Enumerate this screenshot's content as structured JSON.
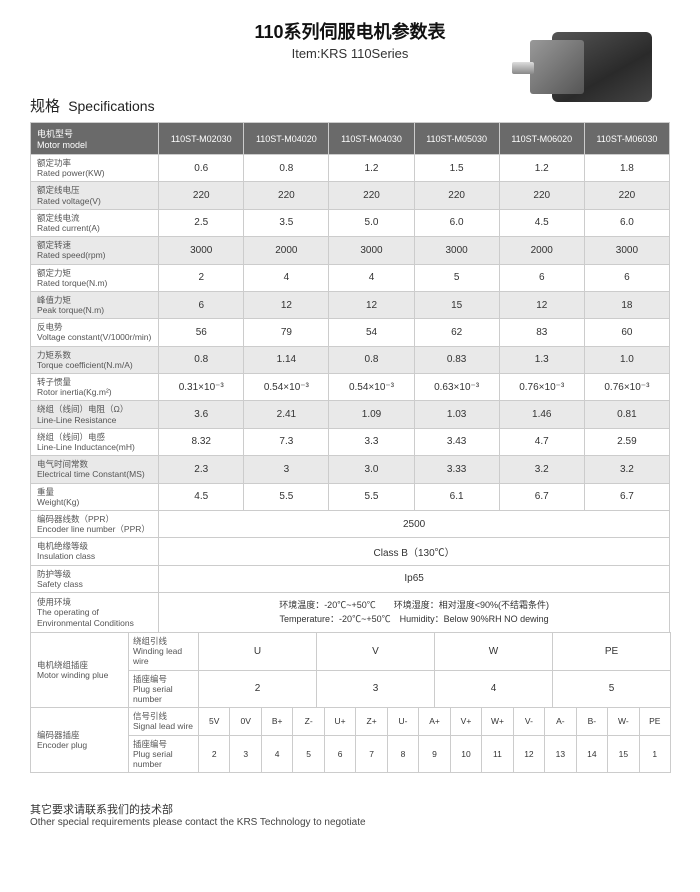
{
  "header": {
    "title_cn": "110系列伺服电机参数表",
    "title_en": "Item:KRS 110Series"
  },
  "section_title_cn": "规格",
  "section_title_en": "Specifications",
  "motor_model_label_cn": "电机型号",
  "motor_model_label_en": "Motor model",
  "models": [
    "110ST-M02030",
    "110ST-M04020",
    "110ST-M04030",
    "110ST-M05030",
    "110ST-M06020",
    "110ST-M06030"
  ],
  "rows": [
    {
      "cn": "额定功率",
      "en": "Rated power(KW)",
      "v": [
        "0.6",
        "0.8",
        "1.2",
        "1.5",
        "1.2",
        "1.8"
      ],
      "alt": false
    },
    {
      "cn": "额定线电压",
      "en": "Rated voltage(V)",
      "v": [
        "220",
        "220",
        "220",
        "220",
        "220",
        "220"
      ],
      "alt": true
    },
    {
      "cn": "额定线电流",
      "en": "Rated current(A)",
      "v": [
        "2.5",
        "3.5",
        "5.0",
        "6.0",
        "4.5",
        "6.0"
      ],
      "alt": false
    },
    {
      "cn": "额定转速",
      "en": "Rated speed(rpm)",
      "v": [
        "3000",
        "2000",
        "3000",
        "3000",
        "2000",
        "3000"
      ],
      "alt": true
    },
    {
      "cn": "额定力矩",
      "en": "Rated torque(N.m)",
      "v": [
        "2",
        "4",
        "4",
        "5",
        "6",
        "6"
      ],
      "alt": false
    },
    {
      "cn": "峰值力矩",
      "en": "Peak torque(N.m)",
      "v": [
        "6",
        "12",
        "12",
        "15",
        "12",
        "18"
      ],
      "alt": true
    },
    {
      "cn": "反电势",
      "en": "Voltage constant(V/1000r/min)",
      "v": [
        "56",
        "79",
        "54",
        "62",
        "83",
        "60"
      ],
      "alt": false
    },
    {
      "cn": "力矩系数",
      "en": "Torque coefficient(N.m/A)",
      "v": [
        "0.8",
        "1.14",
        "0.8",
        "0.83",
        "1.3",
        "1.0"
      ],
      "alt": true
    },
    {
      "cn": "转子惯量",
      "en": "Rotor inertia(Kg.m²)",
      "v": [
        "0.31×10⁻³",
        "0.54×10⁻³",
        "0.54×10⁻³",
        "0.63×10⁻³",
        "0.76×10⁻³",
        "0.76×10⁻³"
      ],
      "alt": false
    },
    {
      "cn": "绕组（线间）电阻（Ω）",
      "en": "Line-Line Resistance",
      "v": [
        "3.6",
        "2.41",
        "1.09",
        "1.03",
        "1.46",
        "0.81"
      ],
      "alt": true
    },
    {
      "cn": "绕组（线间）电感",
      "en": "Line-Line Inductance(mH)",
      "v": [
        "8.32",
        "7.3",
        "3.3",
        "3.43",
        "4.7",
        "2.59"
      ],
      "alt": false
    },
    {
      "cn": "电气时间常数",
      "en": "Electrical time Constant(MS)",
      "v": [
        "2.3",
        "3",
        "3.0",
        "3.33",
        "3.2",
        "3.2"
      ],
      "alt": true
    },
    {
      "cn": "重量",
      "en": "Weight(Kg)",
      "v": [
        "4.5",
        "5.5",
        "5.5",
        "6.1",
        "6.7",
        "6.7"
      ],
      "alt": false
    }
  ],
  "span_rows": [
    {
      "cn": "编码器线数（PPR）",
      "en": "Encoder line number（PPR）",
      "v": "2500"
    },
    {
      "cn": "电机绝缘等级",
      "en": "Insulation class",
      "v": "Class B（130℃）"
    },
    {
      "cn": "防护等级",
      "en": "Safety class",
      "v": "Ip65"
    }
  ],
  "env": {
    "cn": "使用环境",
    "en": "The operating of Environmental Conditions",
    "line1_cn": "环境温度：-20℃~+50℃　　环境湿度：相对湿度<90%(不结霜条件)",
    "line1_en": "Temperature：-20℃~+50℃　Humidity：Below 90%RH NO dewing"
  },
  "winding_plug": {
    "label_cn": "电机绕组插座",
    "label_en": "Motor winding plue",
    "lead_cn": "绕组引线",
    "lead_en": "Winding lead wire",
    "lead_vals": [
      "U",
      "V",
      "W",
      "PE"
    ],
    "num_cn": "插座编号",
    "num_en": "Plug serial number",
    "num_vals": [
      "2",
      "3",
      "4",
      "5"
    ]
  },
  "encoder_plug": {
    "label_cn": "编码器插座",
    "label_en": "Encoder plug",
    "sig_cn": "信号引线",
    "sig_en": "Signal lead wire",
    "sig_vals": [
      "5V",
      "0V",
      "B+",
      "Z-",
      "U+",
      "Z+",
      "U-",
      "A+",
      "V+",
      "W+",
      "V-",
      "A-",
      "B-",
      "W-",
      "PE"
    ],
    "num_cn": "插座编号",
    "num_en": "Plug serial number",
    "num_vals": [
      "2",
      "3",
      "4",
      "5",
      "6",
      "7",
      "8",
      "9",
      "10",
      "11",
      "12",
      "13",
      "14",
      "15",
      "1"
    ]
  },
  "footer": {
    "cn": "其它要求请联系我们的技术部",
    "en": "Other special requirements please contact the KRS Technology to negotiate"
  },
  "colors": {
    "header_bg": "#6a6a6a",
    "header_fg": "#ffffff",
    "row_alt": "#e9e9e9",
    "border": "#cccccc",
    "text": "#333333"
  }
}
